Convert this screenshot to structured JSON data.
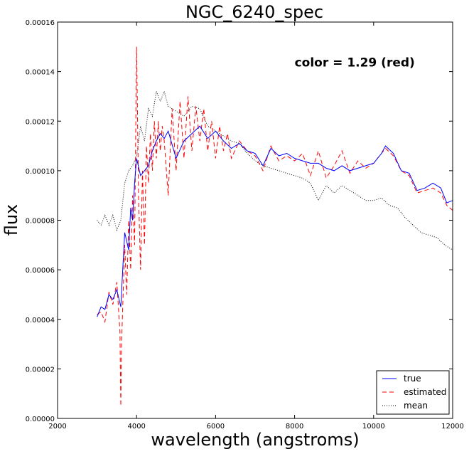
{
  "chart_data": {
    "type": "line",
    "title": "NGC_6240_spec",
    "xlabel": "wavelength (angstroms)",
    "ylabel": "flux",
    "xlim": [
      2000,
      12000
    ],
    "ylim": [
      0,
      0.00016
    ],
    "xticks": [
      "2000",
      "4000",
      "6000",
      "8000",
      "10000",
      "12000"
    ],
    "xtick_values": [
      2000,
      4000,
      6000,
      8000,
      10000,
      12000
    ],
    "yticks": [
      "0.00000",
      "0.00002",
      "0.00004",
      "0.00006",
      "0.00008",
      "0.00010",
      "0.00012",
      "0.00014",
      "0.00016"
    ],
    "ytick_values": [
      0,
      2e-05,
      4e-05,
      6e-05,
      8e-05,
      0.0001,
      0.00012,
      0.00014,
      0.00016
    ],
    "annotation": "color = 1.29 (red)",
    "annotation_anchor": {
      "x": 8000,
      "y": 0.000142
    },
    "legend_placement": "lower right",
    "grid": false,
    "series": [
      {
        "name": "true",
        "color": "#0000ff",
        "style": "solid",
        "x": [
          3000,
          3100,
          3200,
          3300,
          3400,
          3500,
          3600,
          3650,
          3700,
          3800,
          3850,
          3900,
          3950,
          4000,
          4100,
          4200,
          4300,
          4400,
          4500,
          4600,
          4700,
          4800,
          5000,
          5200,
          5400,
          5600,
          5800,
          6000,
          6200,
          6400,
          6600,
          6800,
          7000,
          7200,
          7400,
          7600,
          7800,
          8000,
          8200,
          8400,
          8600,
          8800,
          9000,
          9200,
          9400,
          9600,
          9800,
          10000,
          10200,
          10300,
          10500,
          10700,
          10900,
          11100,
          11300,
          11500,
          11700,
          11850,
          12000
        ],
        "y": [
          4.1e-05,
          4.5e-05,
          4.4e-05,
          5e-05,
          4.8e-05,
          5.2e-05,
          4.5e-05,
          6e-05,
          7.5e-05,
          6.8e-05,
          8.5e-05,
          8e-05,
          9.5e-05,
          0.000105,
          9.8e-05,
          0.0001,
          0.000102,
          0.000108,
          0.000112,
          0.000115,
          0.000113,
          0.000116,
          0.000105,
          0.000112,
          0.000115,
          0.000118,
          0.000113,
          0.000116,
          0.000112,
          0.000109,
          0.000111,
          0.000108,
          0.000107,
          0.000102,
          0.000109,
          0.000106,
          0.000107,
          0.000105,
          0.000104,
          0.000103,
          0.000103,
          0.000101,
          0.0001,
          0.000102,
          0.0001,
          0.000101,
          0.000102,
          0.000103,
          0.000107,
          0.00011,
          0.000107,
          0.0001,
          9.9e-05,
          9.2e-05,
          9.3e-05,
          9.5e-05,
          9.3e-05,
          8.7e-05,
          8.8e-05
        ]
      },
      {
        "name": "estimated",
        "color": "#ff0000",
        "style": "dashed",
        "x": [
          3000,
          3100,
          3200,
          3300,
          3400,
          3500,
          3580,
          3600,
          3620,
          3650,
          3700,
          3750,
          3800,
          3850,
          3900,
          3950,
          4000,
          4050,
          4100,
          4150,
          4200,
          4250,
          4300,
          4350,
          4400,
          4450,
          4500,
          4550,
          4600,
          4650,
          4700,
          4800,
          4900,
          5000,
          5100,
          5200,
          5300,
          5400,
          5500,
          5600,
          5700,
          5800,
          5900,
          6000,
          6100,
          6200,
          6300,
          6400,
          6600,
          6800,
          7000,
          7200,
          7400,
          7600,
          7800,
          8000,
          8200,
          8400,
          8600,
          8800,
          9000,
          9200,
          9400,
          9600,
          9800,
          10000,
          10200,
          10300,
          10500,
          10700,
          10900,
          11100,
          11300,
          11500,
          11700,
          11850,
          12000
        ],
        "y": [
          4.2e-05,
          4.3e-05,
          3.9e-05,
          5.1e-05,
          4.6e-05,
          5.5e-05,
          3.5e-05,
          5e-06,
          3e-05,
          4.5e-05,
          7e-05,
          5e-05,
          8e-05,
          6e-05,
          9e-05,
          7e-05,
          0.00015,
          9e-05,
          6e-05,
          0.0001,
          7e-05,
          0.00011,
          9.5e-05,
          0.000115,
          0.0001,
          0.00012,
          0.000105,
          0.00012,
          0.000108,
          0.000118,
          0.000112,
          9e-05,
          0.000125,
          0.0001,
          0.000128,
          0.000105,
          0.00013,
          0.000108,
          0.000126,
          0.000112,
          0.000125,
          0.000108,
          0.00012,
          0.000105,
          0.000118,
          0.000108,
          0.000115,
          0.000105,
          0.000112,
          0.000108,
          0.000106,
          0.0001,
          0.00011,
          0.000104,
          0.000106,
          0.000104,
          0.000107,
          9.8e-05,
          0.000108,
          9.7e-05,
          0.000102,
          0.000108,
          9.9e-05,
          0.000104,
          0.000101,
          0.000103,
          0.000107,
          0.000109,
          0.000106,
          0.0001,
          9.8e-05,
          9.1e-05,
          9.2e-05,
          9.3e-05,
          9.1e-05,
          8.6e-05,
          8.4e-05
        ]
      },
      {
        "name": "mean",
        "color": "#000000",
        "style": "dotted",
        "x": [
          3000,
          3100,
          3200,
          3300,
          3400,
          3500,
          3600,
          3700,
          3800,
          3900,
          4000,
          4100,
          4200,
          4300,
          4400,
          4500,
          4600,
          4700,
          4800,
          5000,
          5200,
          5400,
          5600,
          5800,
          6000,
          6200,
          6400,
          6600,
          6800,
          7000,
          7200,
          7400,
          7600,
          7800,
          8000,
          8200,
          8400,
          8600,
          8800,
          9000,
          9200,
          9400,
          9600,
          9800,
          10000,
          10200,
          10400,
          10600,
          10800,
          11000,
          11200,
          11400,
          11600,
          11800,
          12000
        ],
        "y": [
          8e-05,
          7.8e-05,
          8.2e-05,
          7.8e-05,
          8.2e-05,
          7.6e-05,
          8e-05,
          9.5e-05,
          0.0001,
          0.000102,
          0.000106,
          0.000118,
          0.000112,
          0.000125,
          0.000122,
          0.000132,
          0.000128,
          0.000132,
          0.000126,
          0.000124,
          0.000122,
          0.000126,
          0.000125,
          0.000118,
          0.000116,
          0.000114,
          0.000112,
          0.000111,
          0.000107,
          0.000104,
          0.000102,
          0.000101,
          0.0001,
          9.9e-05,
          9.8e-05,
          9.7e-05,
          9.5e-05,
          8.8e-05,
          9.4e-05,
          9.1e-05,
          9.4e-05,
          9.2e-05,
          9e-05,
          8.8e-05,
          8.8e-05,
          8.9e-05,
          8.6e-05,
          8.5e-05,
          8.1e-05,
          7.8e-05,
          7.5e-05,
          7.4e-05,
          7.3e-05,
          7e-05,
          6.8e-05
        ]
      }
    ]
  }
}
